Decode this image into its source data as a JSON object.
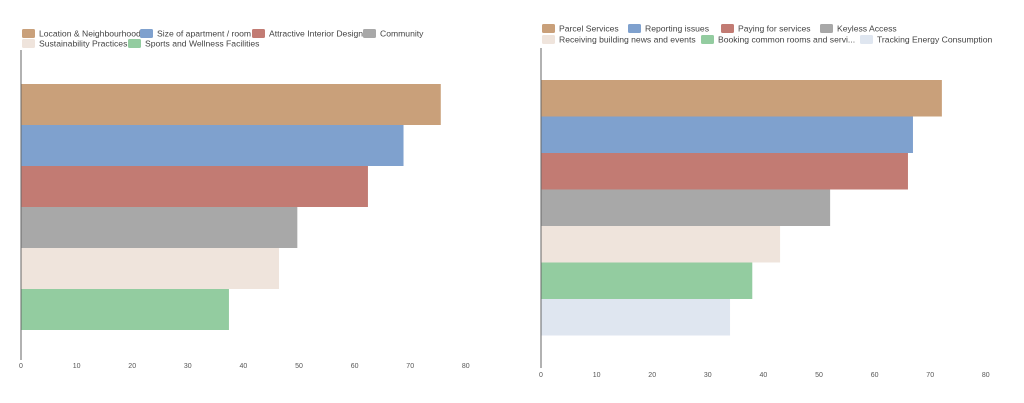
{
  "chart_data": [
    {
      "type": "bar",
      "orientation": "horizontal",
      "series": [
        {
          "name": "Location & Neighbourhood",
          "value": 75.5,
          "color": "#c9a07a"
        },
        {
          "name": "Size of apartment / room",
          "value": 68.8,
          "color": "#7fa1ce"
        },
        {
          "name": "Attractive Interior Design",
          "value": 62.4,
          "color": "#c27b73"
        },
        {
          "name": "Community",
          "value": 49.7,
          "color": "#a8a8a8"
        },
        {
          "name": "Sustainability Practices",
          "value": 46.4,
          "color": "#efe4dc"
        },
        {
          "name": "Sports and Wellness Facilities",
          "value": 37.4,
          "color": "#93cca0"
        }
      ],
      "legend_items": [
        "Location & Neighbourhood",
        "Size of apartment / room",
        "Attractive Interior Design",
        "Community",
        "Sustainability Practices",
        "Sports and Wellness Facilities"
      ],
      "xlim": [
        0,
        80
      ],
      "xticks": [
        "0",
        "10",
        "20",
        "30",
        "40",
        "50",
        "60",
        "70",
        "80"
      ],
      "grid": false,
      "legend": "top"
    },
    {
      "type": "bar",
      "orientation": "horizontal",
      "series": [
        {
          "name": "Parcel Services",
          "value": 72.1,
          "color": "#c9a07a"
        },
        {
          "name": "Reporting issues",
          "value": 66.9,
          "color": "#7fa1ce"
        },
        {
          "name": "Paying for services",
          "value": 66.0,
          "color": "#c27b73"
        },
        {
          "name": "Keyless Access",
          "value": 52.0,
          "color": "#a8a8a8"
        },
        {
          "name": "Receiving building news and events",
          "value": 43.0,
          "color": "#efe4dc"
        },
        {
          "name": "Booking common rooms and servi...",
          "value": 38.0,
          "color": "#93cca0"
        },
        {
          "name": "Tracking Energy Consumption",
          "value": 34.0,
          "color": "#dfe6f0"
        }
      ],
      "legend_items": [
        "Parcel Services",
        "Reporting issues",
        "Paying for services",
        "Keyless Access",
        "Receiving building news and events",
        "Booking common rooms and servi...",
        "Tracking Energy Consumption"
      ],
      "xlim": [
        0,
        80
      ],
      "xticks": [
        "0",
        "10",
        "20",
        "30",
        "40",
        "50",
        "60",
        "70",
        "80"
      ],
      "grid": false,
      "legend": "top"
    }
  ]
}
